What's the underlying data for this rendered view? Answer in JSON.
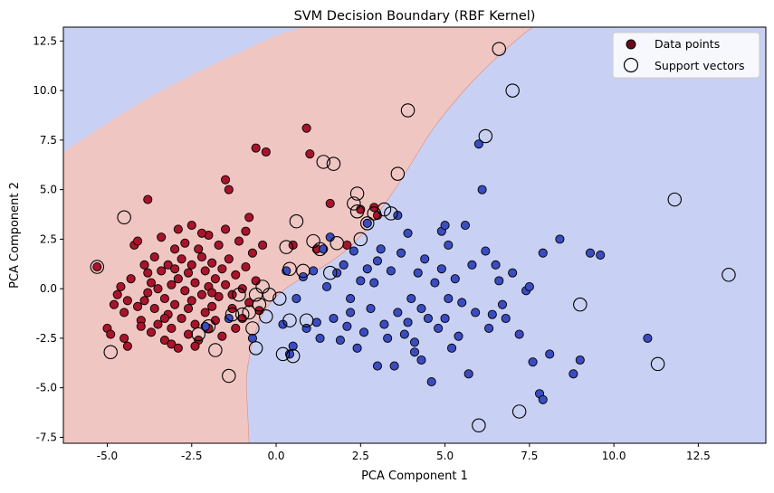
{
  "chart_data": {
    "type": "scatter",
    "title": "SVM Decision Boundary (RBF Kernel)",
    "xlabel": "PCA Component 1",
    "ylabel": "PCA Component 2",
    "xlim": [
      -6.3,
      14.5
    ],
    "ylim": [
      -7.8,
      13.2
    ],
    "xticks": [
      -5.0,
      -2.5,
      0.0,
      2.5,
      5.0,
      7.5,
      10.0,
      12.5
    ],
    "xtick_labels": [
      "-5.0",
      "-2.5",
      "0.0",
      "2.5",
      "5.0",
      "7.5",
      "10.0",
      "12.5"
    ],
    "yticks": [
      -7.5,
      -5.0,
      -2.5,
      0.0,
      2.5,
      5.0,
      7.5,
      10.0,
      12.5
    ],
    "ytick_labels": [
      "-7.5",
      "-5.0",
      "-2.5",
      "0.0",
      "2.5",
      "5.0",
      "7.5",
      "10.0",
      "12.5"
    ],
    "grid": false,
    "legend_position": "top-right",
    "legend": [
      "Data points",
      "Support vectors"
    ],
    "colors": {
      "class_red": "#a8142a",
      "class_blue": "#3b4cc0",
      "region_red": "#f0c6c3",
      "region_blue": "#c8d1f3",
      "support_ring": "#000000",
      "legend_marker": "#6b0a1b"
    },
    "decision_boundary": [
      [
        -0.8,
        -7.8
      ],
      [
        -0.85,
        -6.0
      ],
      [
        -0.9,
        -4.5
      ],
      [
        -0.75,
        -3.0
      ],
      [
        -0.5,
        -1.5
      ],
      [
        -0.1,
        -0.5
      ],
      [
        0.5,
        0.3
      ],
      [
        1.3,
        1.0
      ],
      [
        2.0,
        1.8
      ],
      [
        2.6,
        2.8
      ],
      [
        3.1,
        4.0
      ],
      [
        3.6,
        5.2
      ],
      [
        4.1,
        6.6
      ],
      [
        4.6,
        8.0
      ],
      [
        5.3,
        9.5
      ],
      [
        6.1,
        11.0
      ],
      [
        7.2,
        12.7
      ],
      [
        7.6,
        13.2
      ]
    ],
    "upper_boundary": [
      [
        -6.3,
        6.9
      ],
      [
        -5.5,
        7.8
      ],
      [
        -4.5,
        8.9
      ],
      [
        -3.5,
        9.9
      ],
      [
        -2.5,
        10.8
      ],
      [
        -1.5,
        11.6
      ],
      [
        -0.5,
        12.4
      ],
      [
        0.2,
        12.9
      ],
      [
        0.8,
        13.2
      ]
    ],
    "series": [
      {
        "name": "Data points",
        "class": "red",
        "points": [
          [
            -5.3,
            1.1
          ],
          [
            -5.0,
            -2.0
          ],
          [
            -4.9,
            -2.3
          ],
          [
            -4.7,
            -0.3
          ],
          [
            -4.6,
            0.1
          ],
          [
            -4.5,
            -1.2
          ],
          [
            -4.4,
            -0.6
          ],
          [
            -4.5,
            -2.5
          ],
          [
            -4.4,
            -2.9
          ],
          [
            -4.3,
            0.5
          ],
          [
            -4.2,
            2.2
          ],
          [
            -4.1,
            2.4
          ],
          [
            -4.1,
            -0.9
          ],
          [
            -4.0,
            -1.6
          ],
          [
            -3.9,
            1.2
          ],
          [
            -3.8,
            0.8
          ],
          [
            -3.8,
            -0.2
          ],
          [
            -3.7,
            0.3
          ],
          [
            -3.7,
            -2.2
          ],
          [
            -3.6,
            1.6
          ],
          [
            -3.6,
            -1.0
          ],
          [
            -3.5,
            0.0
          ],
          [
            -3.5,
            -1.8
          ],
          [
            -3.4,
            2.6
          ],
          [
            -3.4,
            0.9
          ],
          [
            -3.3,
            -0.5
          ],
          [
            -3.3,
            -2.6
          ],
          [
            -3.2,
            1.2
          ],
          [
            -3.2,
            -1.3
          ],
          [
            -3.1,
            0.2
          ],
          [
            -3.1,
            -2.0
          ],
          [
            -3.0,
            2.0
          ],
          [
            -3.0,
            1.0
          ],
          [
            -3.0,
            -0.8
          ],
          [
            -2.9,
            -3.0
          ],
          [
            -2.9,
            0.5
          ],
          [
            -2.8,
            1.5
          ],
          [
            -2.8,
            -1.5
          ],
          [
            -2.7,
            -0.1
          ],
          [
            -2.7,
            2.3
          ],
          [
            -2.6,
            0.8
          ],
          [
            -2.6,
            -2.3
          ],
          [
            -2.5,
            3.2
          ],
          [
            -2.5,
            1.2
          ],
          [
            -2.5,
            -0.6
          ],
          [
            -2.4,
            -1.8
          ],
          [
            -2.4,
            0.3
          ],
          [
            -2.3,
            2.0
          ],
          [
            -2.3,
            -2.6
          ],
          [
            -2.2,
            1.6
          ],
          [
            -2.2,
            -0.3
          ],
          [
            -2.1,
            0.9
          ],
          [
            -2.1,
            -1.2
          ],
          [
            -2.0,
            2.7
          ],
          [
            -2.0,
            0.1
          ],
          [
            -2.0,
            -2.0
          ],
          [
            -1.9,
            1.3
          ],
          [
            -1.9,
            -0.9
          ],
          [
            -1.8,
            0.5
          ],
          [
            -1.8,
            -1.6
          ],
          [
            -1.7,
            2.2
          ],
          [
            -1.7,
            -0.4
          ],
          [
            -1.6,
            1.0
          ],
          [
            -1.6,
            -2.4
          ],
          [
            -1.5,
            0.2
          ],
          [
            -1.5,
            3.0
          ],
          [
            -1.5,
            5.5
          ],
          [
            -1.4,
            5.0
          ],
          [
            -1.4,
            1.5
          ],
          [
            -1.3,
            -1.0
          ],
          [
            -1.2,
            0.7
          ],
          [
            -1.2,
            -2.0
          ],
          [
            -1.1,
            2.4
          ],
          [
            -1.0,
            0.0
          ],
          [
            -1.0,
            -1.5
          ],
          [
            -0.9,
            1.1
          ],
          [
            -0.8,
            3.6
          ],
          [
            -0.8,
            -0.7
          ],
          [
            -0.7,
            1.8
          ],
          [
            -0.6,
            7.1
          ],
          [
            -0.6,
            0.4
          ],
          [
            -0.5,
            -1.1
          ],
          [
            -0.4,
            2.2
          ],
          [
            -0.3,
            6.9
          ],
          [
            -3.8,
            4.5
          ],
          [
            -4.0,
            -1.9
          ],
          [
            -3.3,
            -1.5
          ],
          [
            -2.6,
            -1.0
          ],
          [
            -2.2,
            2.8
          ],
          [
            -1.9,
            -0.2
          ],
          [
            0.5,
            2.2
          ],
          [
            0.9,
            8.1
          ],
          [
            1.0,
            6.8
          ],
          [
            1.2,
            2.0
          ],
          [
            1.6,
            4.3
          ],
          [
            2.1,
            2.2
          ],
          [
            2.5,
            4.0
          ],
          [
            3.0,
            3.7
          ],
          [
            2.9,
            4.1
          ],
          [
            -4.8,
            -0.8
          ],
          [
            -3.9,
            -0.6
          ],
          [
            -3.1,
            -2.8
          ],
          [
            -2.9,
            3.0
          ],
          [
            -2.4,
            -2.9
          ],
          [
            -1.3,
            -0.3
          ],
          [
            -0.9,
            2.9
          ]
        ]
      },
      {
        "name": "Data points",
        "class": "blue",
        "points": [
          [
            -2.1,
            -1.9
          ],
          [
            -1.4,
            -1.5
          ],
          [
            -0.7,
            -2.5
          ],
          [
            0.2,
            -1.8
          ],
          [
            0.4,
            -3.3
          ],
          [
            0.5,
            -2.9
          ],
          [
            0.6,
            -0.5
          ],
          [
            0.8,
            0.6
          ],
          [
            0.9,
            -2.0
          ],
          [
            1.1,
            0.9
          ],
          [
            1.2,
            -1.7
          ],
          [
            1.3,
            -2.5
          ],
          [
            1.5,
            0.1
          ],
          [
            1.6,
            2.6
          ],
          [
            1.7,
            -1.5
          ],
          [
            1.8,
            0.8
          ],
          [
            1.9,
            -2.6
          ],
          [
            2.0,
            1.2
          ],
          [
            2.1,
            -1.9
          ],
          [
            2.2,
            -0.5
          ],
          [
            2.3,
            1.9
          ],
          [
            2.4,
            -3.0
          ],
          [
            2.5,
            0.4
          ],
          [
            2.6,
            -2.2
          ],
          [
            2.7,
            1.0
          ],
          [
            2.8,
            -1.0
          ],
          [
            2.9,
            0.3
          ],
          [
            3.0,
            -3.9
          ],
          [
            3.1,
            2.0
          ],
          [
            3.2,
            -1.8
          ],
          [
            3.3,
            -2.5
          ],
          [
            3.4,
            0.9
          ],
          [
            3.5,
            -3.9
          ],
          [
            3.6,
            -1.2
          ],
          [
            3.7,
            1.8
          ],
          [
            3.8,
            -2.3
          ],
          [
            3.9,
            2.8
          ],
          [
            4.0,
            -0.5
          ],
          [
            4.1,
            -2.7
          ],
          [
            4.2,
            0.8
          ],
          [
            4.3,
            -3.6
          ],
          [
            4.4,
            1.5
          ],
          [
            4.5,
            -1.5
          ],
          [
            4.6,
            -4.7
          ],
          [
            4.7,
            0.3
          ],
          [
            4.8,
            -2.0
          ],
          [
            4.9,
            1.0
          ],
          [
            5.0,
            -1.5
          ],
          [
            5.1,
            2.2
          ],
          [
            5.2,
            -3.0
          ],
          [
            5.3,
            0.5
          ],
          [
            5.4,
            -2.4
          ],
          [
            5.5,
            -0.7
          ],
          [
            5.6,
            3.2
          ],
          [
            5.7,
            -4.3
          ],
          [
            5.8,
            1.2
          ],
          [
            5.9,
            -1.2
          ],
          [
            6.0,
            7.3
          ],
          [
            6.1,
            5.0
          ],
          [
            6.2,
            1.9
          ],
          [
            6.3,
            -2.0
          ],
          [
            6.4,
            -1.3
          ],
          [
            6.6,
            0.4
          ],
          [
            6.8,
            -1.5
          ],
          [
            7.0,
            0.8
          ],
          [
            7.2,
            -2.3
          ],
          [
            7.4,
            -0.1
          ],
          [
            7.6,
            -3.7
          ],
          [
            7.8,
            -5.3
          ],
          [
            7.9,
            1.8
          ],
          [
            8.1,
            -3.3
          ],
          [
            8.4,
            2.5
          ],
          [
            8.8,
            -4.3
          ],
          [
            9.0,
            -3.6
          ],
          [
            9.3,
            1.8
          ],
          [
            9.6,
            1.7
          ],
          [
            11.0,
            -2.5
          ],
          [
            7.5,
            0.1
          ],
          [
            6.5,
            1.2
          ],
          [
            4.9,
            2.9
          ],
          [
            3.6,
            3.7
          ],
          [
            2.7,
            3.3
          ],
          [
            1.4,
            2.0
          ],
          [
            0.3,
            0.9
          ],
          [
            5.1,
            -0.5
          ],
          [
            4.3,
            -1.0
          ],
          [
            3.0,
            1.4
          ],
          [
            7.9,
            -5.6
          ],
          [
            5.0,
            3.2
          ],
          [
            4.1,
            -3.2
          ],
          [
            2.2,
            -1.2
          ],
          [
            3.9,
            -1.7
          ],
          [
            6.7,
            -0.8
          ]
        ]
      },
      {
        "name": "Support vectors",
        "points": [
          [
            -5.3,
            1.1
          ],
          [
            -4.9,
            -3.2
          ],
          [
            -4.5,
            3.6
          ],
          [
            -2.3,
            -2.3
          ],
          [
            -2.0,
            -1.9
          ],
          [
            -1.8,
            -3.1
          ],
          [
            -1.4,
            -4.4
          ],
          [
            -1.1,
            -0.3
          ],
          [
            -1.0,
            -1.3
          ],
          [
            -0.7,
            -2.0
          ],
          [
            -0.6,
            -3.0
          ],
          [
            -0.5,
            -0.8
          ],
          [
            -0.4,
            0.1
          ],
          [
            -0.3,
            -1.4
          ],
          [
            -0.2,
            -0.3
          ],
          [
            0.1,
            -0.5
          ],
          [
            0.2,
            -3.3
          ],
          [
            0.3,
            2.1
          ],
          [
            0.4,
            -1.6
          ],
          [
            0.4,
            1.0
          ],
          [
            0.5,
            -3.4
          ],
          [
            0.6,
            3.4
          ],
          [
            0.8,
            0.9
          ],
          [
            0.9,
            -1.6
          ],
          [
            1.1,
            2.4
          ],
          [
            1.3,
            2.0
          ],
          [
            1.4,
            6.4
          ],
          [
            1.6,
            0.8
          ],
          [
            1.7,
            6.3
          ],
          [
            1.8,
            2.3
          ],
          [
            2.3,
            4.3
          ],
          [
            2.4,
            4.8
          ],
          [
            2.4,
            3.9
          ],
          [
            2.5,
            2.5
          ],
          [
            2.7,
            3.3
          ],
          [
            2.9,
            3.8
          ],
          [
            3.2,
            4.0
          ],
          [
            3.4,
            3.8
          ],
          [
            3.6,
            5.8
          ],
          [
            3.9,
            9.0
          ],
          [
            6.0,
            -6.9
          ],
          [
            6.2,
            7.7
          ],
          [
            6.6,
            12.1
          ],
          [
            7.0,
            10.0
          ],
          [
            7.2,
            -6.2
          ],
          [
            9.0,
            -0.8
          ],
          [
            11.3,
            -3.8
          ],
          [
            11.8,
            4.5
          ],
          [
            13.4,
            0.7
          ],
          [
            -0.6,
            -0.3
          ],
          [
            -0.8,
            -1.2
          ],
          [
            -1.3,
            -1.3
          ]
        ]
      }
    ]
  }
}
